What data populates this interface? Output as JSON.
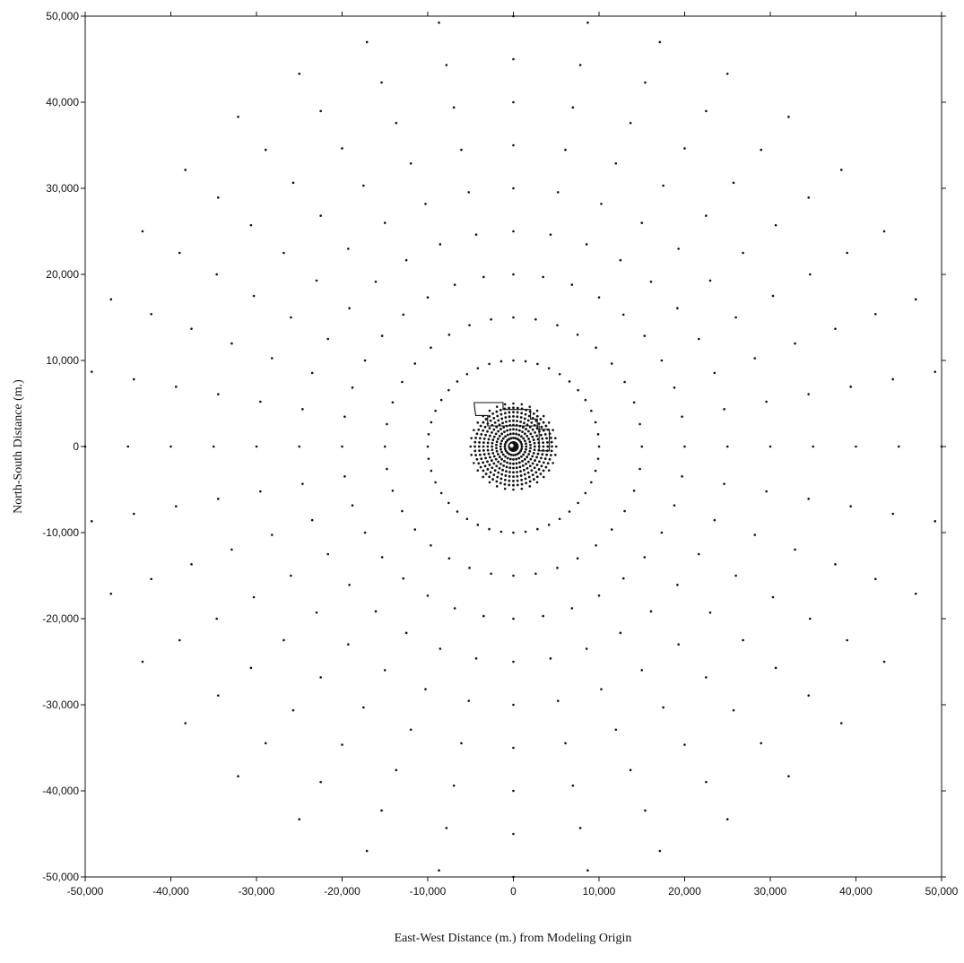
{
  "chart_data": {
    "type": "scatter",
    "title": "",
    "xlabel": "East-West Distance (m.) from Modeling Origin",
    "ylabel": "North-South Distance (m.)",
    "xlim": [
      -50000,
      50000
    ],
    "ylim": [
      -50000,
      50000
    ],
    "x_ticks": [
      -50000,
      -40000,
      -30000,
      -20000,
      -10000,
      0,
      10000,
      20000,
      30000,
      40000,
      50000
    ],
    "y_ticks": [
      -50000,
      -40000,
      -30000,
      -20000,
      -10000,
      0,
      10000,
      20000,
      30000,
      40000,
      50000
    ],
    "x_tick_labels": [
      "-50,000",
      "-40,000",
      "-30,000",
      "-20,000",
      "-10,000",
      "0",
      "10,000",
      "20,000",
      "30,000",
      "40,000",
      "50,000"
    ],
    "y_tick_labels": [
      "-50,000",
      "-40,000",
      "-30,000",
      "-20,000",
      "-10,000",
      "0",
      "10,000",
      "20,000",
      "30,000",
      "40,000",
      "50,000"
    ],
    "grid": false,
    "legend": "none",
    "colors": {
      "points": "#111111",
      "axes": "#111111",
      "background": "#ffffff"
    },
    "polar_receptor_grid": {
      "center": [
        0,
        0
      ],
      "far_rings": {
        "radii": [
          15000,
          20000,
          25000,
          30000,
          35000,
          40000,
          45000,
          50000
        ],
        "angle_step_deg": 10
      },
      "mid_rings": {
        "radii": [
          5000,
          10000
        ],
        "points_per_ring": [
          32,
          44
        ]
      },
      "near_rings": {
        "radii": [
          1000,
          1500,
          2000,
          2500,
          3000,
          3500,
          4000,
          4500
        ],
        "points_per_ring": [
          24,
          28,
          34,
          40,
          44,
          48,
          52,
          56
        ]
      }
    },
    "facility_boundary": [
      [
        -4600,
        5100
      ],
      [
        -1200,
        5100
      ],
      [
        -1200,
        4300
      ],
      [
        2000,
        4300
      ],
      [
        2000,
        3200
      ],
      [
        2800,
        3200
      ],
      [
        2800,
        2000
      ],
      [
        4200,
        2000
      ],
      [
        4200,
        -500
      ],
      [
        3000,
        -500
      ],
      [
        3000,
        2400
      ],
      [
        -3000,
        2400
      ],
      [
        -3000,
        3600
      ],
      [
        -4400,
        3600
      ],
      [
        -4600,
        5100
      ]
    ]
  }
}
